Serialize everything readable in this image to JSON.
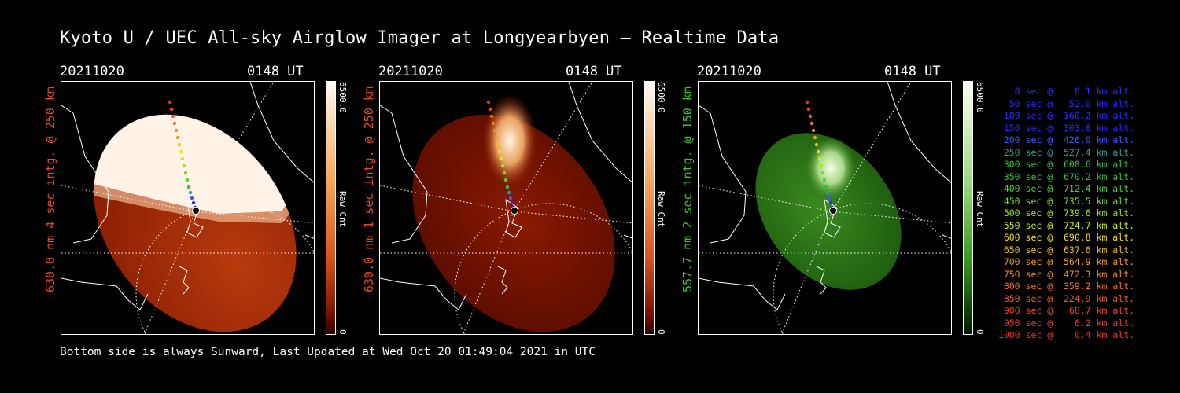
{
  "title": "Kyoto U / UEC All-sky Airglow Imager at Longyearbyen — Realtime Data",
  "footer": "Bottom side is always Sunward, Last Updated at Wed Oct 20 01:49:04 2021 in UTC",
  "panels": [
    {
      "date": "20211020",
      "time": "0148 UT",
      "side_label": "630.0 nm 4 sec intg. @ 250 km",
      "label_color": "#e34a20",
      "cbar_max": "6500.0",
      "cbar_mid": "Raw Cnt",
      "cbar_min": "0"
    },
    {
      "date": "20211020",
      "time": "0148 UT",
      "side_label": "630.0 nm 1 sec intg. @ 250 km",
      "label_color": "#e34a20",
      "cbar_max": "6500.0",
      "cbar_mid": "Raw Cnt",
      "cbar_min": "0"
    },
    {
      "date": "20211020",
      "time": "0148 UT",
      "side_label": "557.7 nm 2 sec intg. @ 150 km",
      "label_color": "#39c826",
      "cbar_max": "6500.0",
      "cbar_mid": "Raw Cnt",
      "cbar_min": "0"
    }
  ],
  "legend": [
    {
      "text": "   0 sec @    0.1 km alt.",
      "color": "#2a2aff"
    },
    {
      "text": "  50 sec @   52.0 km alt.",
      "color": "#2a2aff"
    },
    {
      "text": " 100 sec @  160.2 km alt.",
      "color": "#2a2aff"
    },
    {
      "text": " 150 sec @  303.8 km alt.",
      "color": "#2a2aff"
    },
    {
      "text": " 200 sec @  426.0 km alt.",
      "color": "#3a5aff"
    },
    {
      "text": " 250 sec @  527.4 km alt.",
      "color": "#26a0a0"
    },
    {
      "text": " 300 sec @  608.6 km alt.",
      "color": "#2ec42e"
    },
    {
      "text": " 350 sec @  670.2 km alt.",
      "color": "#2ec42e"
    },
    {
      "text": " 400 sec @  712.4 km alt.",
      "color": "#44d628"
    },
    {
      "text": " 450 sec @  735.5 km alt.",
      "color": "#6ee020"
    },
    {
      "text": " 500 sec @  739.6 km alt.",
      "color": "#a0e818"
    },
    {
      "text": " 550 sec @  724.7 km alt.",
      "color": "#d0f010"
    },
    {
      "text": " 600 sec @  690.8 km alt.",
      "color": "#f0e010"
    },
    {
      "text": " 650 sec @  637.6 km alt.",
      "color": "#f0c010"
    },
    {
      "text": " 700 sec @  564.9 km alt.",
      "color": "#f0a010"
    },
    {
      "text": " 750 sec @  472.3 km alt.",
      "color": "#f09010"
    },
    {
      "text": " 800 sec @  359.2 km alt.",
      "color": "#f07818"
    },
    {
      "text": " 850 sec @  224.9 km alt.",
      "color": "#f06018"
    },
    {
      "text": " 900 sec @   68.7 km alt.",
      "color": "#f04818"
    },
    {
      "text": " 950 sec @    6.2 km alt.",
      "color": "#f03818"
    },
    {
      "text": "1000 sec @    0.4 km alt.",
      "color": "#f03018"
    }
  ]
}
